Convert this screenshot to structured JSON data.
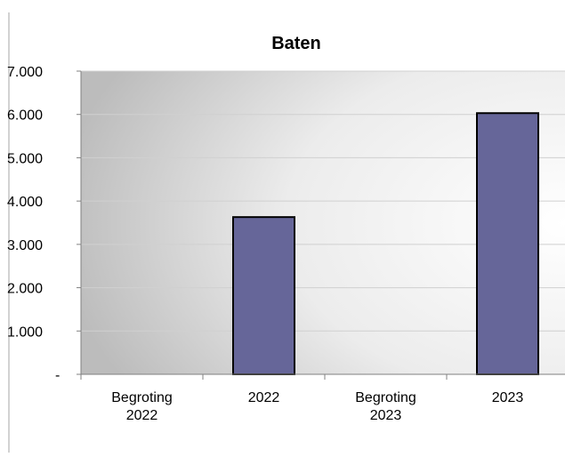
{
  "chart_data": {
    "type": "bar",
    "title": "Baten",
    "xlabel": "",
    "ylabel": "",
    "categories": [
      [
        "Begroting",
        "2022"
      ],
      [
        "2022"
      ],
      [
        "Begroting",
        "2023"
      ],
      [
        "2023"
      ]
    ],
    "values": [
      0,
      3630,
      0,
      6030
    ],
    "ylim": [
      0,
      7000
    ],
    "yticks": [
      0,
      1000,
      2000,
      3000,
      4000,
      5000,
      6000,
      7000
    ],
    "ytick_labels": [
      "-",
      "1.000",
      "2.000",
      "3.000",
      "4.000",
      "5.000",
      "6.000",
      "7.000"
    ],
    "grid": true,
    "legend": "none",
    "colors": {
      "bar_fill": "#666699",
      "bar_stroke": "#000000",
      "gridline": "#d0d0d0",
      "plot_bg_dark": "#bcbcbc",
      "plot_bg_light": "#ffffff",
      "frame": "#a6a6a6"
    }
  }
}
